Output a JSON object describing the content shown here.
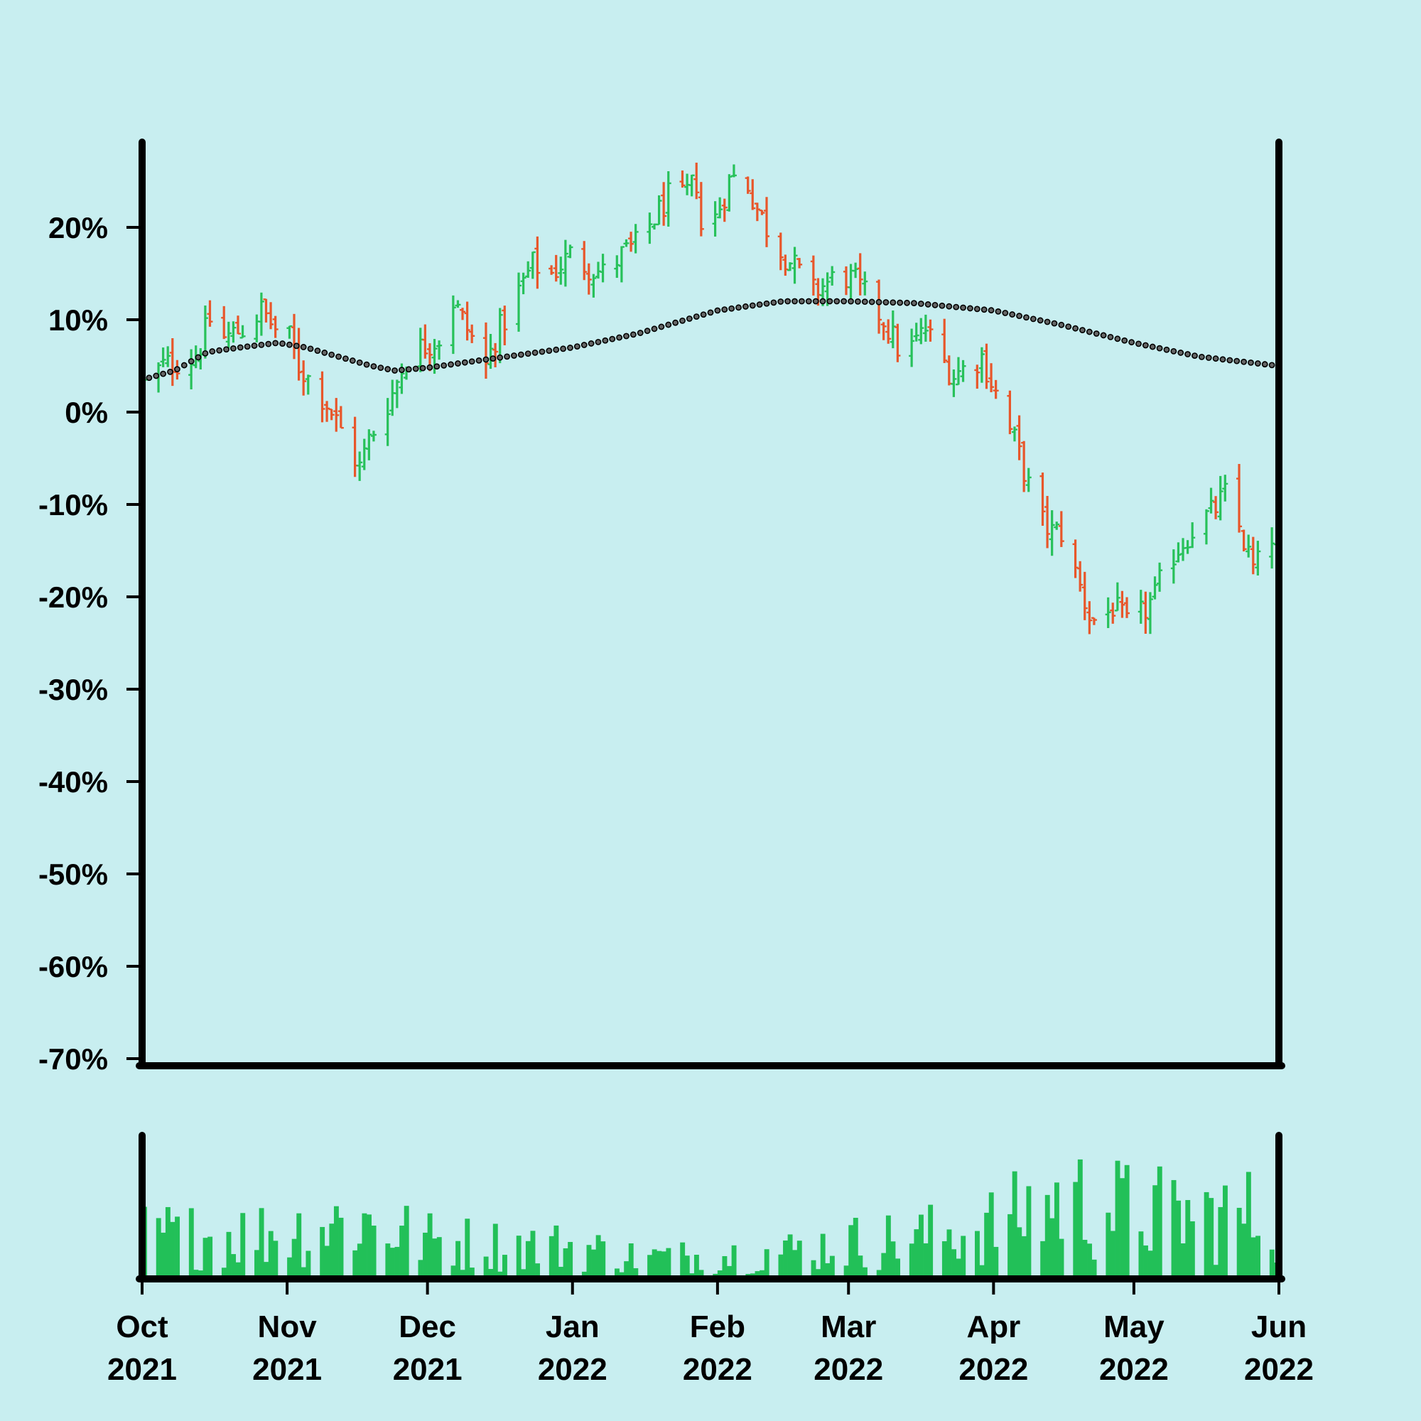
{
  "chart_data": [
    {
      "type": "ohlc",
      "title": "",
      "xlabel": "",
      "ylabel": "",
      "y_unit": "%",
      "ylim": [
        -70,
        29
      ],
      "yticks": [
        20,
        10,
        0,
        -10,
        -20,
        -30,
        -40,
        -50,
        -60,
        -70
      ],
      "ytick_labels": [
        "20%",
        "10%",
        "0%",
        "-10%",
        "-20%",
        "-30%",
        "-40%",
        "-50%",
        "-60%",
        "-70%"
      ],
      "xlim": [
        "2021-10-01",
        "2022-06-01"
      ],
      "grid": false,
      "legend": "none",
      "colors": {
        "up": "#27c15a",
        "down": "#e8562a",
        "background": "#c8eef0",
        "axis": "#000000",
        "moving_average": "#444444"
      },
      "series": [
        {
          "type": "ohlc",
          "close_path": [
            [
              "2021-10-01",
              3
            ],
            [
              "2021-10-05",
              5
            ],
            [
              "2021-10-12",
              6
            ],
            [
              "2021-10-15",
              10
            ],
            [
              "2021-10-18",
              8
            ],
            [
              "2021-10-22",
              9
            ],
            [
              "2021-10-26",
              11
            ],
            [
              "2021-10-29",
              9
            ],
            [
              "2021-11-01",
              8
            ],
            [
              "2021-11-03",
              5
            ],
            [
              "2021-11-06",
              3
            ],
            [
              "2021-11-09",
              1
            ],
            [
              "2021-11-12",
              -2
            ],
            [
              "2021-11-14",
              -4
            ],
            [
              "2021-11-16",
              -6
            ],
            [
              "2021-11-18",
              -3
            ],
            [
              "2021-11-20",
              -1
            ],
            [
              "2021-11-23",
              2
            ],
            [
              "2021-11-26",
              6
            ],
            [
              "2021-11-29",
              7
            ],
            [
              "2021-12-03",
              8
            ],
            [
              "2021-12-06",
              12
            ],
            [
              "2021-12-09",
              9
            ],
            [
              "2021-12-11",
              7
            ],
            [
              "2021-12-13",
              5
            ],
            [
              "2021-12-15",
              8
            ],
            [
              "2021-12-17",
              10
            ],
            [
              "2021-12-20",
              13
            ],
            [
              "2021-12-23",
              16
            ],
            [
              "2021-12-27",
              15
            ],
            [
              "2021-12-31",
              17
            ],
            [
              "2022-01-03",
              16
            ],
            [
              "2022-01-07",
              15
            ],
            [
              "2022-01-11",
              17
            ],
            [
              "2022-01-14",
              18
            ],
            [
              "2022-01-18",
              21
            ],
            [
              "2022-01-22",
              24
            ],
            [
              "2022-01-24",
              23
            ],
            [
              "2022-01-27",
              25
            ],
            [
              "2022-01-28",
              20
            ],
            [
              "2022-01-31",
              21
            ],
            [
              "2022-02-03",
              25
            ],
            [
              "2022-02-06",
              26
            ],
            [
              "2022-02-09",
              22
            ],
            [
              "2022-02-12",
              19
            ],
            [
              "2022-02-15",
              17
            ],
            [
              "2022-02-18",
              15
            ],
            [
              "2022-02-21",
              13
            ],
            [
              "2022-02-24",
              14
            ],
            [
              "2022-02-27",
              15
            ],
            [
              "2022-03-02",
              14
            ],
            [
              "2022-03-05",
              12
            ],
            [
              "2022-03-08",
              10
            ],
            [
              "2022-03-10",
              8
            ],
            [
              "2022-03-12",
              6
            ],
            [
              "2022-03-14",
              7
            ],
            [
              "2022-03-17",
              9
            ],
            [
              "2022-03-20",
              6
            ],
            [
              "2022-03-23",
              4
            ],
            [
              "2022-03-26",
              5
            ],
            [
              "2022-03-29",
              6
            ],
            [
              "2022-04-01",
              2
            ],
            [
              "2022-04-03",
              -1
            ],
            [
              "2022-04-05",
              -3
            ],
            [
              "2022-04-08",
              -8
            ],
            [
              "2022-04-11",
              -12
            ],
            [
              "2022-04-13",
              -13
            ],
            [
              "2022-04-15",
              -13
            ],
            [
              "2022-04-17",
              -16
            ],
            [
              "2022-04-19",
              -19
            ],
            [
              "2022-04-21",
              -22
            ],
            [
              "2022-04-23",
              -23
            ],
            [
              "2022-04-26",
              -21
            ],
            [
              "2022-04-29",
              -23
            ],
            [
              "2022-05-02",
              -22
            ],
            [
              "2022-05-05",
              -20
            ],
            [
              "2022-05-08",
              -16
            ],
            [
              "2022-05-11",
              -14
            ],
            [
              "2022-05-14",
              -12
            ],
            [
              "2022-05-17",
              -11
            ],
            [
              "2022-05-20",
              -9
            ],
            [
              "2022-05-22",
              -11
            ],
            [
              "2022-05-24",
              -14
            ],
            [
              "2022-05-26",
              -17
            ],
            [
              "2022-05-28",
              -16
            ],
            [
              "2022-05-31",
              -12
            ]
          ]
        },
        {
          "type": "line",
          "style": "dotted",
          "values": [
            [
              "2021-10-01",
              3.5
            ],
            [
              "2021-10-08",
              4.5
            ],
            [
              "2021-10-15",
              6.5
            ],
            [
              "2021-10-22",
              7
            ],
            [
              "2021-10-30",
              7.5
            ],
            [
              "2021-11-05",
              7
            ],
            [
              "2021-11-12",
              6
            ],
            [
              "2021-11-19",
              5
            ],
            [
              "2021-11-24",
              4.5
            ],
            [
              "2021-12-01",
              4.8
            ],
            [
              "2021-12-15",
              5.8
            ],
            [
              "2022-01-01",
              7
            ],
            [
              "2022-01-15",
              8.5
            ],
            [
              "2022-02-01",
              11
            ],
            [
              "2022-02-15",
              12
            ],
            [
              "2022-03-01",
              12
            ],
            [
              "2022-03-15",
              11.8
            ],
            [
              "2022-04-01",
              11
            ],
            [
              "2022-04-15",
              9.5
            ],
            [
              "2022-05-01",
              7.5
            ],
            [
              "2022-05-15",
              6
            ],
            [
              "2022-06-01",
              5
            ]
          ]
        }
      ]
    },
    {
      "type": "bar",
      "title": "",
      "xlabel": "",
      "ylabel": "",
      "yticks": [],
      "ylim": [
        0,
        1
      ],
      "xlim": [
        "2021-10-01",
        "2022-06-01"
      ],
      "xtick_labels": [
        [
          "Oct",
          "2021"
        ],
        [
          "Nov",
          "2021"
        ],
        [
          "Dec",
          "2021"
        ],
        [
          "Jan",
          "2022"
        ],
        [
          "Feb",
          "2022"
        ],
        [
          "Mar",
          "2022"
        ],
        [
          "Apr",
          "2022"
        ],
        [
          "May",
          "2022"
        ],
        [
          "Jun",
          "2022"
        ]
      ],
      "xtick_dates": [
        "2021-10-01",
        "2021-11-01",
        "2021-12-01",
        "2022-01-01",
        "2022-02-01",
        "2022-03-01",
        "2022-04-01",
        "2022-05-01",
        "2022-06-01"
      ],
      "bar_color": "#22c058",
      "volume_profile": [
        [
          "2021-10-01",
          0.42
        ],
        [
          "2021-10-15",
          0.4
        ],
        [
          "2021-11-01",
          0.44
        ],
        [
          "2021-11-15",
          0.56
        ],
        [
          "2021-12-01",
          0.36
        ],
        [
          "2021-12-15",
          0.32
        ],
        [
          "2022-01-01",
          0.3
        ],
        [
          "2022-01-15",
          0.2
        ],
        [
          "2022-02-01",
          0.22
        ],
        [
          "2022-02-15",
          0.26
        ],
        [
          "2022-03-01",
          0.34
        ],
        [
          "2022-03-15",
          0.38
        ],
        [
          "2022-04-01",
          0.5
        ],
        [
          "2022-04-15",
          0.74
        ],
        [
          "2022-05-01",
          0.62
        ],
        [
          "2022-05-15",
          0.58
        ],
        [
          "2022-05-31",
          0.6
        ]
      ]
    }
  ]
}
